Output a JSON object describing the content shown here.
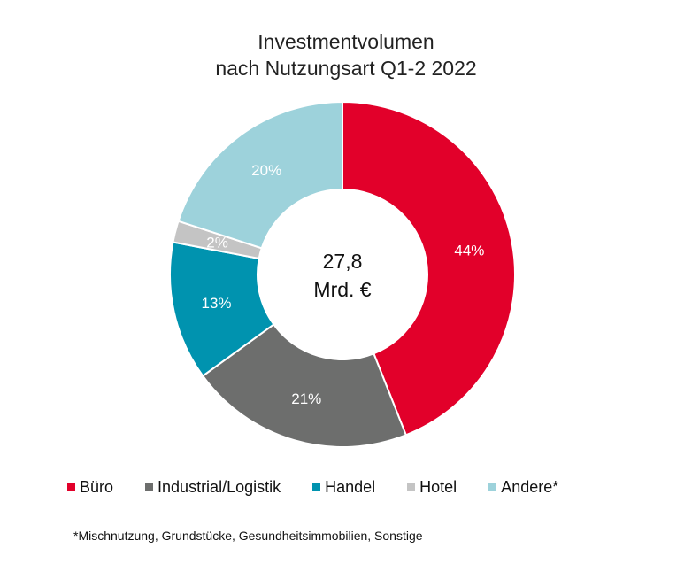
{
  "chart_data": {
    "type": "pie",
    "variant": "donut",
    "title": [
      "Investmentvolumen",
      "nach Nutzungsart Q1-2 2022"
    ],
    "center_label": [
      "27,8",
      "Mrd. €"
    ],
    "categories": [
      "Büro",
      "Industrial/Logistik",
      "Handel",
      "Hotel",
      "Andere*"
    ],
    "values": [
      44,
      21,
      13,
      2,
      20
    ],
    "data_labels": [
      "44%",
      "21%",
      "13%",
      "2%",
      "20%"
    ],
    "colors": [
      "#E2002A",
      "#6D6E6D",
      "#0093AF",
      "#C4C4C4",
      "#9DD2DB"
    ],
    "legend_position": "bottom",
    "footnote": "*Mischnutzung, Grundstücke, Gesundheitsimmobilien, Sonstige"
  }
}
